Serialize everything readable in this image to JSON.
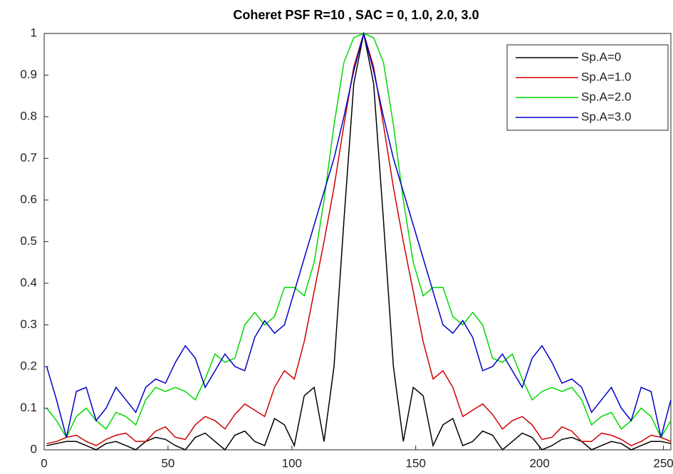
{
  "chart_data": {
    "type": "line",
    "title": "Coheret PSF R=10 , SAC = 0, 1.0, 2.0, 3.0",
    "x": [
      1,
      5,
      9,
      13,
      17,
      21,
      25,
      29,
      33,
      37,
      41,
      45,
      49,
      53,
      57,
      61,
      65,
      69,
      73,
      77,
      81,
      85,
      89,
      93,
      97,
      101,
      105,
      109,
      113,
      117,
      121,
      125,
      129,
      133,
      137,
      141,
      145,
      149,
      153,
      157,
      161,
      165,
      169,
      173,
      177,
      181,
      185,
      189,
      193,
      197,
      201,
      205,
      209,
      213,
      217,
      221,
      225,
      229,
      233,
      237,
      241,
      245,
      249,
      253
    ],
    "series": [
      {
        "name": "Sp.A=0",
        "color": "#000000",
        "values": [
          0.01,
          0.015,
          0.02,
          0.02,
          0.01,
          0,
          0.015,
          0.02,
          0.01,
          0,
          0.02,
          0.03,
          0.025,
          0.01,
          0,
          0.03,
          0.04,
          0.02,
          0,
          0.035,
          0.045,
          0.02,
          0.01,
          0.075,
          0.06,
          0.01,
          0.13,
          0.15,
          0.02,
          0.2,
          0.55,
          0.88,
          1,
          0.88,
          0.55,
          0.2,
          0.02,
          0.15,
          0.13,
          0.01,
          0.06,
          0.075,
          0.01,
          0.02,
          0.045,
          0.035,
          0,
          0.02,
          0.04,
          0.03,
          0,
          0.01,
          0.025,
          0.03,
          0.02,
          0,
          0.01,
          0.02,
          0.015,
          0,
          0.01,
          0.02,
          0.02,
          0.015
        ]
      },
      {
        "name": "Sp.A=1.0",
        "color": "#d00000",
        "values": [
          0.015,
          0.02,
          0.03,
          0.035,
          0.02,
          0.01,
          0.025,
          0.035,
          0.04,
          0.02,
          0.02,
          0.045,
          0.055,
          0.03,
          0.025,
          0.06,
          0.08,
          0.07,
          0.05,
          0.085,
          0.11,
          0.095,
          0.08,
          0.15,
          0.19,
          0.17,
          0.26,
          0.38,
          0.5,
          0.63,
          0.78,
          0.92,
          1,
          0.92,
          0.78,
          0.63,
          0.5,
          0.38,
          0.26,
          0.17,
          0.19,
          0.15,
          0.08,
          0.095,
          0.11,
          0.085,
          0.05,
          0.07,
          0.08,
          0.06,
          0.025,
          0.03,
          0.055,
          0.045,
          0.02,
          0.02,
          0.04,
          0.035,
          0.025,
          0.01,
          0.02,
          0.035,
          0.03,
          0.02
        ]
      },
      {
        "name": "Sp.A=2.0",
        "color": "#00d800",
        "values": [
          0.1,
          0.07,
          0.03,
          0.08,
          0.1,
          0.07,
          0.05,
          0.09,
          0.08,
          0.06,
          0.12,
          0.15,
          0.14,
          0.15,
          0.14,
          0.12,
          0.17,
          0.23,
          0.21,
          0.22,
          0.3,
          0.33,
          0.3,
          0.32,
          0.39,
          0.39,
          0.37,
          0.45,
          0.6,
          0.78,
          0.93,
          0.99,
          1,
          0.99,
          0.93,
          0.78,
          0.6,
          0.45,
          0.37,
          0.39,
          0.39,
          0.32,
          0.3,
          0.33,
          0.3,
          0.22,
          0.21,
          0.23,
          0.17,
          0.12,
          0.14,
          0.15,
          0.14,
          0.15,
          0.12,
          0.06,
          0.08,
          0.09,
          0.05,
          0.07,
          0.1,
          0.08,
          0.03,
          0.07
        ]
      },
      {
        "name": "Sp.A=3.0",
        "color": "#0000c8",
        "values": [
          0.2,
          0.12,
          0.03,
          0.14,
          0.15,
          0.07,
          0.1,
          0.15,
          0.12,
          0.09,
          0.15,
          0.17,
          0.16,
          0.21,
          0.25,
          0.22,
          0.15,
          0.19,
          0.23,
          0.2,
          0.19,
          0.27,
          0.31,
          0.28,
          0.3,
          0.38,
          0.46,
          0.54,
          0.62,
          0.7,
          0.8,
          0.91,
          1,
          0.91,
          0.8,
          0.7,
          0.62,
          0.54,
          0.46,
          0.38,
          0.3,
          0.28,
          0.31,
          0.27,
          0.19,
          0.2,
          0.23,
          0.19,
          0.15,
          0.22,
          0.25,
          0.21,
          0.16,
          0.17,
          0.15,
          0.09,
          0.12,
          0.15,
          0.1,
          0.07,
          0.15,
          0.14,
          0.03,
          0.12
        ]
      }
    ],
    "xlim": [
      0,
      253
    ],
    "xticks": [
      0,
      50,
      100,
      150,
      200,
      250
    ],
    "ylim": [
      0,
      1
    ],
    "yticks": [
      0,
      0.1,
      0.2,
      0.3,
      0.4,
      0.5,
      0.6,
      0.7,
      0.8,
      0.9,
      1
    ],
    "legend": "upper right"
  }
}
